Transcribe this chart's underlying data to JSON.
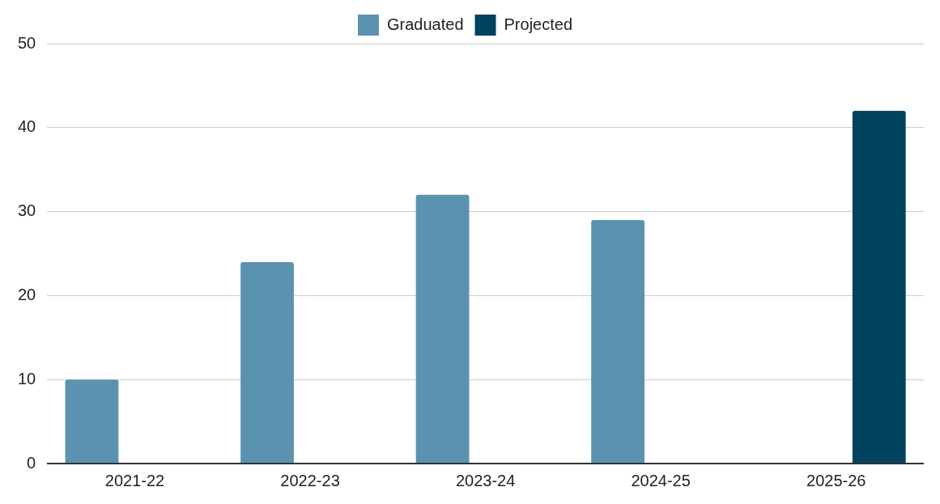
{
  "chart_data": {
    "type": "bar",
    "categories": [
      "2021-22",
      "2022-23",
      "2023-24",
      "2024-25",
      "2025-26"
    ],
    "series": [
      {
        "name": "Graduated",
        "color": "#5b92b0",
        "values": [
          10,
          24,
          32,
          29,
          null
        ]
      },
      {
        "name": "Projected",
        "color": "#00435e",
        "values": [
          null,
          null,
          null,
          null,
          42
        ]
      }
    ],
    "ylim": [
      0,
      50
    ],
    "yticks": [
      0,
      10,
      20,
      30,
      40,
      50
    ],
    "grid": "y",
    "legend": "top"
  }
}
